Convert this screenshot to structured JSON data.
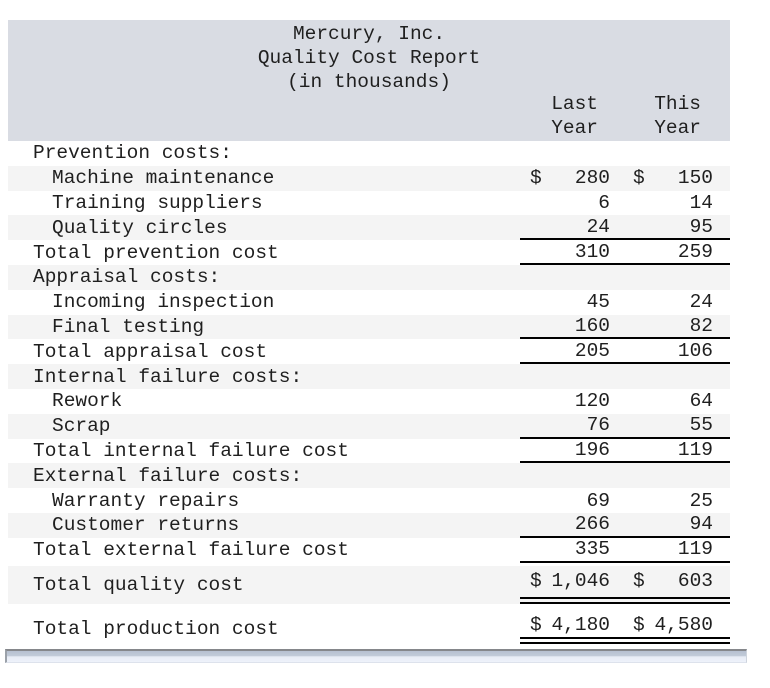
{
  "report": {
    "title_lines": [
      "Mercury, Inc.",
      "Quality Cost Report",
      "(in thousands)"
    ],
    "columns": [
      {
        "line1": "Last",
        "line2": "Year"
      },
      {
        "line1": "This",
        "line2": "Year"
      }
    ],
    "rows": [
      {
        "label": "Prevention costs:",
        "type": "normal",
        "indent": "section",
        "shaded": false,
        "rule": "none",
        "last_dollar": "",
        "last": "",
        "this_dollar": "",
        "this": ""
      },
      {
        "label": "Machine maintenance",
        "type": "normal",
        "indent": "item",
        "shaded": true,
        "rule": "none",
        "last_dollar": "$",
        "last": "280",
        "this_dollar": "$",
        "this": "150"
      },
      {
        "label": "Training suppliers",
        "type": "normal",
        "indent": "item",
        "shaded": false,
        "rule": "none",
        "last_dollar": "",
        "last": "6",
        "this_dollar": "",
        "this": "14"
      },
      {
        "label": "Quality circles",
        "type": "normal",
        "indent": "item",
        "shaded": true,
        "rule": "single",
        "last_dollar": "",
        "last": "24",
        "this_dollar": "",
        "this": "95"
      },
      {
        "label": "Total prevention cost",
        "type": "normal",
        "indent": "total",
        "shaded": false,
        "rule": "single",
        "last_dollar": "",
        "last": "310",
        "this_dollar": "",
        "this": "259"
      },
      {
        "label": "Appraisal costs:",
        "type": "normal",
        "indent": "section",
        "shaded": true,
        "rule": "none",
        "last_dollar": "",
        "last": "",
        "this_dollar": "",
        "this": ""
      },
      {
        "label": "Incoming inspection",
        "type": "normal",
        "indent": "item",
        "shaded": false,
        "rule": "none",
        "last_dollar": "",
        "last": "45",
        "this_dollar": "",
        "this": "24"
      },
      {
        "label": "Final testing",
        "type": "normal",
        "indent": "item",
        "shaded": true,
        "rule": "single",
        "last_dollar": "",
        "last": "160",
        "this_dollar": "",
        "this": "82"
      },
      {
        "label": "Total appraisal cost",
        "type": "normal",
        "indent": "total",
        "shaded": false,
        "rule": "single",
        "last_dollar": "",
        "last": "205",
        "this_dollar": "",
        "this": "106"
      },
      {
        "label": "Internal failure costs:",
        "type": "normal",
        "indent": "section",
        "shaded": true,
        "rule": "none",
        "last_dollar": "",
        "last": "",
        "this_dollar": "",
        "this": ""
      },
      {
        "label": "Rework",
        "type": "normal",
        "indent": "item",
        "shaded": false,
        "rule": "none",
        "last_dollar": "",
        "last": "120",
        "this_dollar": "",
        "this": "64"
      },
      {
        "label": "Scrap",
        "type": "normal",
        "indent": "item",
        "shaded": true,
        "rule": "single",
        "last_dollar": "",
        "last": "76",
        "this_dollar": "",
        "this": "55"
      },
      {
        "label": "Total internal failure cost",
        "type": "normal",
        "indent": "total",
        "shaded": false,
        "rule": "single",
        "last_dollar": "",
        "last": "196",
        "this_dollar": "",
        "this": "119"
      },
      {
        "label": "External failure costs:",
        "type": "normal",
        "indent": "section",
        "shaded": true,
        "rule": "none",
        "last_dollar": "",
        "last": "",
        "this_dollar": "",
        "this": ""
      },
      {
        "label": "Warranty repairs",
        "type": "normal",
        "indent": "item",
        "shaded": false,
        "rule": "none",
        "last_dollar": "",
        "last": "69",
        "this_dollar": "",
        "this": "25"
      },
      {
        "label": "Customer returns",
        "type": "normal",
        "indent": "item",
        "shaded": true,
        "rule": "single",
        "last_dollar": "",
        "last": "266",
        "this_dollar": "",
        "this": "94"
      },
      {
        "label": "Total external failure cost",
        "type": "normal",
        "indent": "total",
        "shaded": false,
        "rule": "single",
        "last_dollar": "",
        "last": "335",
        "this_dollar": "",
        "this": "119"
      },
      {
        "label": "Total quality cost",
        "type": "grand",
        "indent": "total",
        "shaded": true,
        "rule": "double",
        "last_dollar": "$",
        "last": "1,046",
        "this_dollar": "$",
        "this": "603"
      },
      {
        "label": "Total production cost",
        "type": "grand2",
        "indent": "total",
        "shaded": false,
        "rule": "double",
        "last_dollar": "$",
        "last": "4,180",
        "this_dollar": "$",
        "this": "4,580"
      }
    ]
  },
  "colors": {
    "header_band": "#d9dce3",
    "row_stripe": "#f4f4f4",
    "text": "#1f1f1f",
    "rule": "#000000",
    "scrollbar_fill": "#b6c0d0"
  },
  "chart_data": {
    "type": "table",
    "title": "Mercury, Inc. Quality Cost Report (in thousands)",
    "columns": [
      "Last Year",
      "This Year"
    ],
    "sections": [
      {
        "name": "Prevention costs",
        "items": [
          [
            "Machine maintenance",
            280,
            150
          ],
          [
            "Training suppliers",
            6,
            14
          ],
          [
            "Quality circles",
            24,
            95
          ]
        ],
        "total": [
          "Total prevention cost",
          310,
          259
        ]
      },
      {
        "name": "Appraisal costs",
        "items": [
          [
            "Incoming inspection",
            45,
            24
          ],
          [
            "Final testing",
            160,
            82
          ]
        ],
        "total": [
          "Total appraisal cost",
          205,
          106
        ]
      },
      {
        "name": "Internal failure costs",
        "items": [
          [
            "Rework",
            120,
            64
          ],
          [
            "Scrap",
            76,
            55
          ]
        ],
        "total": [
          "Total internal failure cost",
          196,
          119
        ]
      },
      {
        "name": "External failure costs",
        "items": [
          [
            "Warranty repairs",
            69,
            25
          ],
          [
            "Customer returns",
            266,
            94
          ]
        ],
        "total": [
          "Total external failure cost",
          335,
          119
        ]
      }
    ],
    "grand_totals": [
      [
        "Total quality cost",
        1046,
        603
      ],
      [
        "Total production cost",
        4180,
        4580
      ]
    ]
  }
}
